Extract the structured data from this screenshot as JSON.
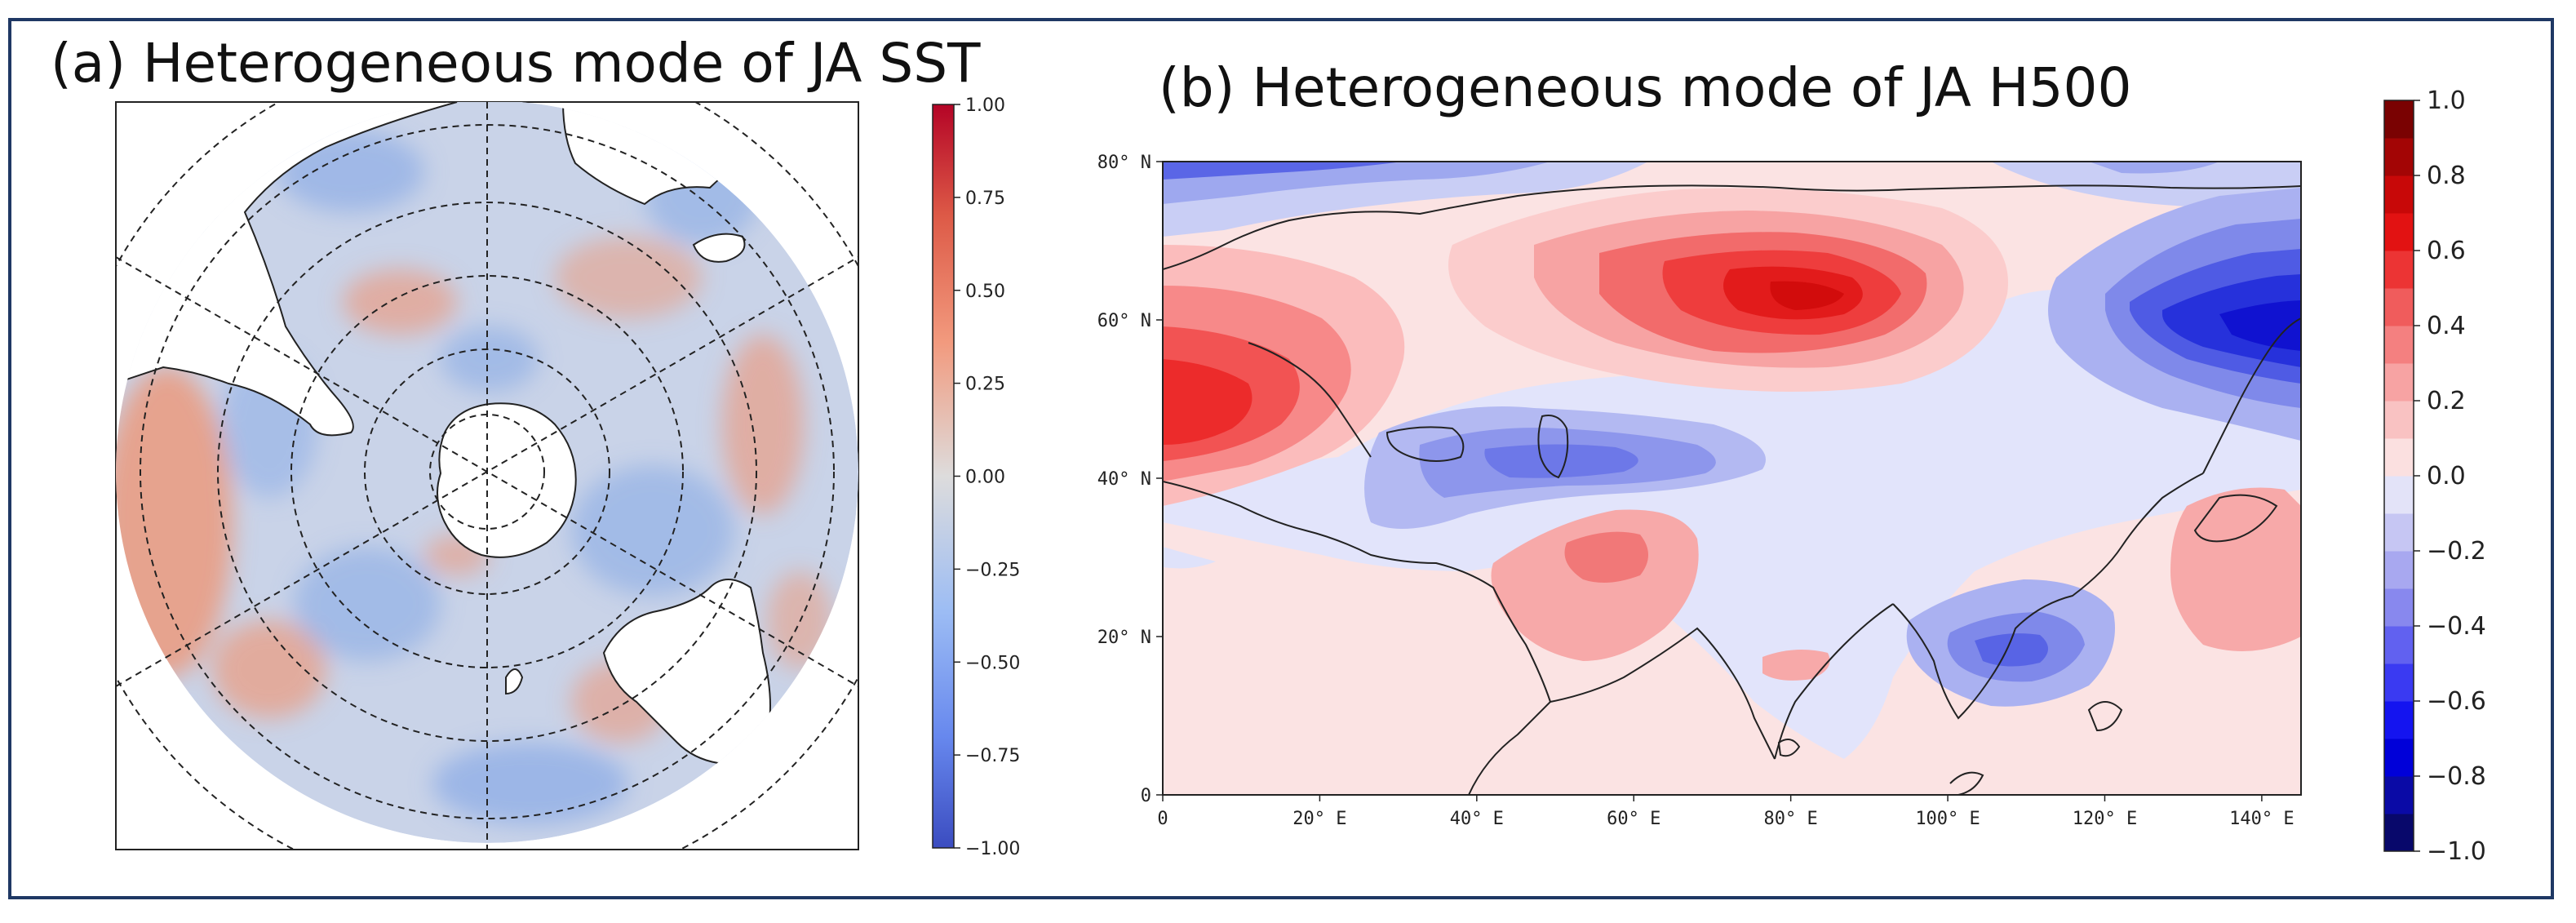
{
  "chart_data": [
    {
      "type": "heatmap",
      "title": "(a) Heterogeneous mode of JA SST",
      "projection": "south-polar-stereographic",
      "field": "SST heterogeneous correlation",
      "colormap": "coolwarm",
      "colorbar": {
        "min": -1.0,
        "max": 1.0,
        "ticks": [
          1.0,
          0.75,
          0.5,
          0.25,
          0.0,
          -0.25,
          -0.5,
          -0.75,
          -1.0
        ],
        "tick_labels": [
          "1.00",
          "0.75",
          "0.50",
          "0.25",
          "0.00",
          "−0.25",
          "−0.50",
          "−0.75",
          "−1.00"
        ]
      },
      "grid": true,
      "colors": {
        "positive": "#e8896c",
        "negative": "#7aa2e8",
        "neutral": "#dcdcdc"
      }
    },
    {
      "type": "heatmap",
      "title": "(b) Heterogeneous mode of JA H500",
      "projection": "plate-carree",
      "field": "H500 heterogeneous correlation",
      "colormap": "bwr",
      "x_ticks": [
        0,
        20,
        40,
        60,
        80,
        100,
        120,
        140
      ],
      "x_tick_labels": [
        "0",
        "20° E",
        "40° E",
        "60° E",
        "80° E",
        "100° E",
        "120° E",
        "140° E"
      ],
      "y_ticks": [
        0,
        20,
        40,
        60,
        80
      ],
      "y_tick_labels": [
        "0",
        "20° N",
        "40° N",
        "60° N",
        "80° N"
      ],
      "xlim": [
        0,
        145
      ],
      "ylim": [
        0,
        80
      ],
      "centers": [
        {
          "name": "europe-positive-center",
          "lon": 8,
          "lat": 48,
          "value": 0.55
        },
        {
          "name": "siberia-positive-center",
          "lon": 80,
          "lat": 62,
          "value": 0.6
        },
        {
          "name": "east-asia-negative-center",
          "lon": 140,
          "lat": 58,
          "value": -0.55
        },
        {
          "name": "caspian-negative-center",
          "lon": 45,
          "lat": 42,
          "value": -0.3
        },
        {
          "name": "indochina-negative-center",
          "lon": 113,
          "lat": 18,
          "value": -0.3
        },
        {
          "name": "arabia-positive-center",
          "lon": 58,
          "lat": 29,
          "value": 0.3
        },
        {
          "name": "pacific-positive-center",
          "lon": 135,
          "lat": 30,
          "value": 0.2
        },
        {
          "name": "arctic-negative-band",
          "lon": 30,
          "lat": 78,
          "value": -0.35
        }
      ],
      "colorbar": {
        "min": -1.0,
        "max": 1.0,
        "ticks": [
          1.0,
          0.8,
          0.6,
          0.4,
          0.2,
          0.0,
          -0.2,
          -0.4,
          -0.6,
          -0.8,
          -1.0
        ],
        "tick_labels": [
          "1.0",
          "0.8",
          "0.6",
          "0.4",
          "0.2",
          "0.0",
          "−0.2",
          "−0.4",
          "−0.6",
          "−0.8",
          "−1.0"
        ]
      },
      "grid": false
    }
  ]
}
